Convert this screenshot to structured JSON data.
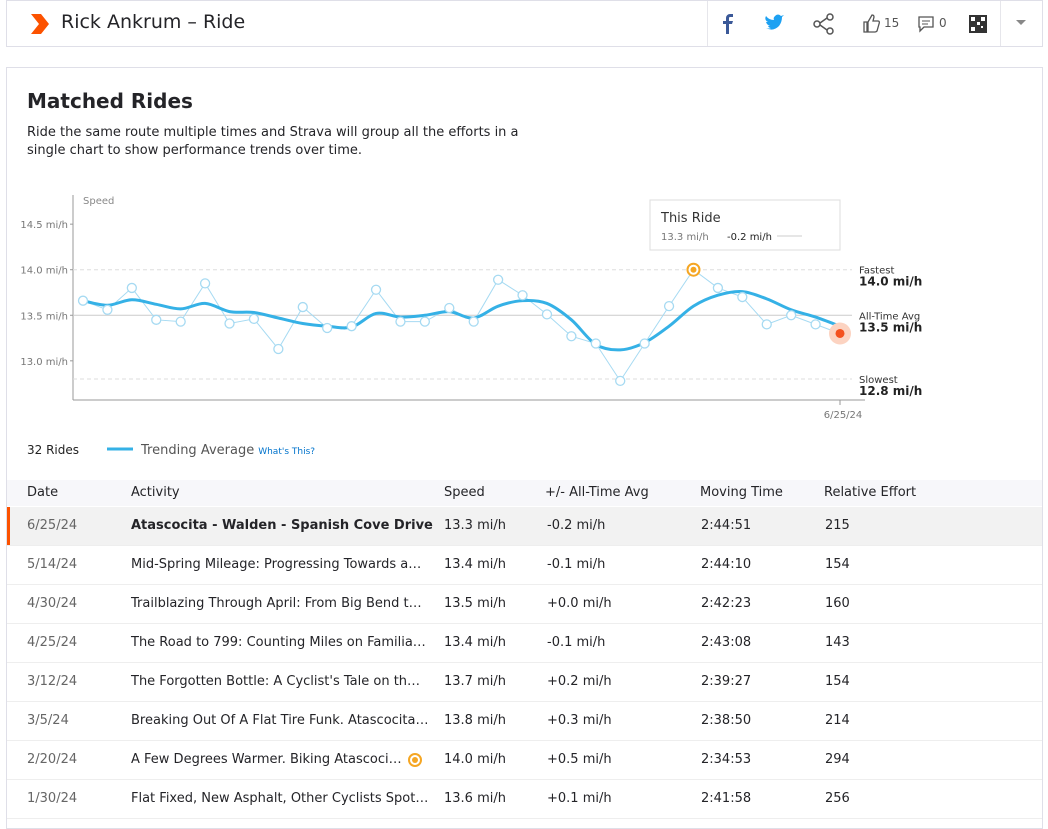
{
  "header": {
    "title": "Rick Ankrum – Ride",
    "kudos": 15,
    "comments": 0
  },
  "section": {
    "title": "Matched Rides",
    "description": [
      "Ride the same route multiple times and Strava will group all the efforts in a",
      "single chart to show performance trends over time."
    ]
  },
  "chart_data": {
    "type": "line",
    "y_label": "Speed",
    "categories": [
      null,
      null,
      null,
      null,
      null,
      null,
      null,
      null,
      null,
      null,
      null,
      null,
      null,
      null,
      null,
      null,
      null,
      null,
      null,
      null,
      null,
      null,
      null,
      null,
      null,
      null,
      null,
      null,
      null,
      null,
      null,
      "6/25/24"
    ],
    "series": [
      {
        "color": "#a6daf2",
        "values": [
          13.66,
          13.56,
          13.8,
          13.45,
          13.43,
          13.85,
          13.41,
          13.46,
          13.13,
          13.59,
          13.36,
          13.38,
          13.78,
          13.43,
          13.43,
          13.58,
          13.43,
          13.89,
          13.72,
          13.51,
          13.27,
          13.19,
          12.78,
          13.19,
          13.6,
          14.0,
          13.8,
          13.7,
          13.4,
          13.5,
          13.4,
          13.3
        ]
      },
      {
        "name": "Trending Average",
        "color": "#35b1e6",
        "values": [
          13.66,
          13.61,
          13.67,
          13.62,
          13.57,
          13.63,
          13.54,
          13.53,
          13.47,
          13.41,
          13.38,
          13.37,
          13.52,
          13.48,
          13.5,
          13.54,
          13.47,
          13.6,
          13.66,
          13.63,
          13.45,
          13.18,
          13.12,
          13.2,
          13.38,
          13.6,
          13.72,
          13.76,
          13.68,
          13.56,
          13.48,
          13.38
        ]
      }
    ],
    "ylim": [
      12.57,
      14.82
    ],
    "yticks": [
      {
        "value": 13.0,
        "label": "13.0 mi/h"
      },
      {
        "value": 13.5,
        "label": "13.5 mi/h"
      },
      {
        "value": 14.0,
        "label": "14.0 mi/h"
      },
      {
        "value": 14.5,
        "label": "14.5 mi/h"
      }
    ],
    "reference_lines": [
      {
        "label": "Fastest",
        "value": 14.0,
        "value_label": "14.0 mi/h"
      },
      {
        "label": "All-Time Avg",
        "value": 13.5,
        "value_label": "13.5 mi/h"
      },
      {
        "label": "Slowest",
        "value": 12.8,
        "value_label": "12.8 mi/h"
      }
    ],
    "annotation": {
      "title": "This Ride",
      "speed": "13.3 mi/h",
      "diff": "-0.2 mi/h"
    },
    "ride_count": "32 Rides",
    "legend_link": "What's This?"
  },
  "table": {
    "columns": [
      "Date",
      "Activity",
      "Speed",
      "+/- All-Time Avg",
      "Moving Time",
      "Relative Effort"
    ],
    "rows": [
      [
        "6/25/24",
        "Atascocita - Walden - Spanish Cove Drive",
        "13.3 mi/h",
        "-0.2 mi/h",
        "2:44:51",
        215
      ],
      [
        "5/14/24",
        "Mid-Spring Mileage: Progressing Towards a…",
        "13.4 mi/h",
        "-0.1 mi/h",
        "2:44:10",
        154
      ],
      [
        "4/30/24",
        "Trailblazing Through April: From Big Bend t…",
        "13.5 mi/h",
        "+0.0 mi/h",
        "2:42:23",
        160
      ],
      [
        "4/25/24",
        "The Road to 799: Counting Miles on Familia…",
        "13.4 mi/h",
        "-0.1 mi/h",
        "2:43:08",
        143
      ],
      [
        "3/12/24",
        "The Forgotten Bottle: A Cyclist's Tale on th…",
        "13.7 mi/h",
        "+0.2 mi/h",
        "2:39:27",
        154
      ],
      [
        "3/5/24",
        "Breaking Out Of A Flat Tire Funk. Atascocita…",
        "13.8 mi/h",
        "+0.3 mi/h",
        "2:38:50",
        214
      ],
      [
        "2/20/24",
        "A Few Degrees Warmer. Biking Atascoci…",
        "14.0 mi/h",
        "+0.5 mi/h",
        "2:34:53",
        294
      ],
      [
        "1/30/24",
        "Flat Fixed, New Asphalt, Other Cyclists Spot…",
        "13.6 mi/h",
        "+0.1 mi/h",
        "2:41:58",
        256
      ]
    ]
  }
}
